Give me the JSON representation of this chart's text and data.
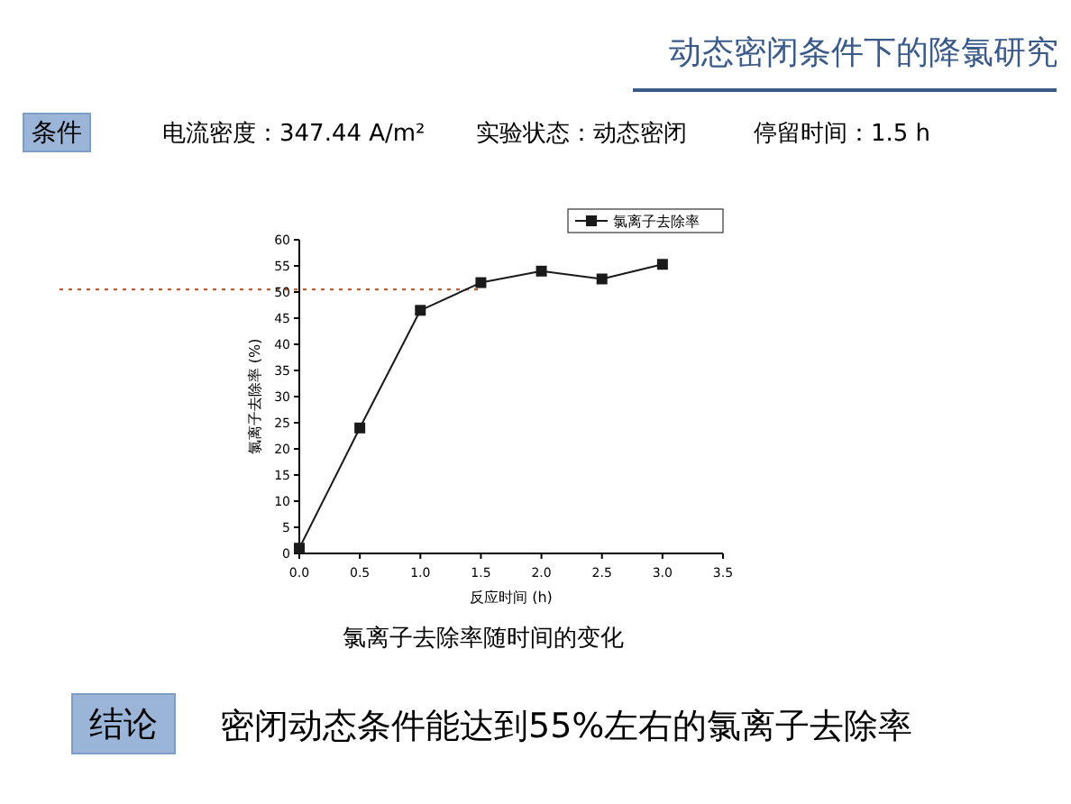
{
  "chart_data": {
    "type": "line",
    "title": "动态密闭条件下的降氯研究",
    "xlabel": "反应时间 (h)",
    "ylabel": "氯离子去除率 (%)",
    "x": [
      0,
      0.5,
      1.0,
      1.5,
      2.0,
      2.5,
      3.0
    ],
    "series": [
      {
        "name": "氯离子去除率",
        "color": "#1a1a1a",
        "values": [
          1,
          24,
          46.5,
          51.8,
          54,
          52.5,
          55.3
        ]
      }
    ],
    "xlim": [
      0,
      3.5
    ],
    "xticks": [
      {
        "value": 0,
        "label": "0.0"
      },
      {
        "value": 0.5,
        "label": "0.5"
      },
      {
        "value": 1,
        "label": "1.0"
      },
      {
        "value": 1.5,
        "label": "1.5"
      },
      {
        "value": 2,
        "label": "2.0"
      },
      {
        "value": 2.5,
        "label": "2.5"
      },
      {
        "value": 3,
        "label": "3.0"
      },
      {
        "value": 3.5,
        "label": "3.5"
      }
    ],
    "ylim": [
      0,
      60
    ],
    "yticks": [
      0,
      5,
      10,
      15,
      20,
      25,
      30,
      35,
      40,
      45,
      50,
      55,
      60
    ],
    "ref_lines": [
      {
        "axis": "y",
        "value": 50.5,
        "color": "#b5603a",
        "line_style": "dotted"
      }
    ],
    "marker": "square",
    "line_style": "solid",
    "legend": "top right",
    "grid": false,
    "annotations": [
      "条件",
      "电流密度：347.44 A/m²",
      "实验状态：动态密闭",
      "停留时间：1.5 h",
      "氯离子去除率随时间的变化",
      "结论",
      "密闭动态条件能达到55%左右的氯离子去除率"
    ]
  }
}
